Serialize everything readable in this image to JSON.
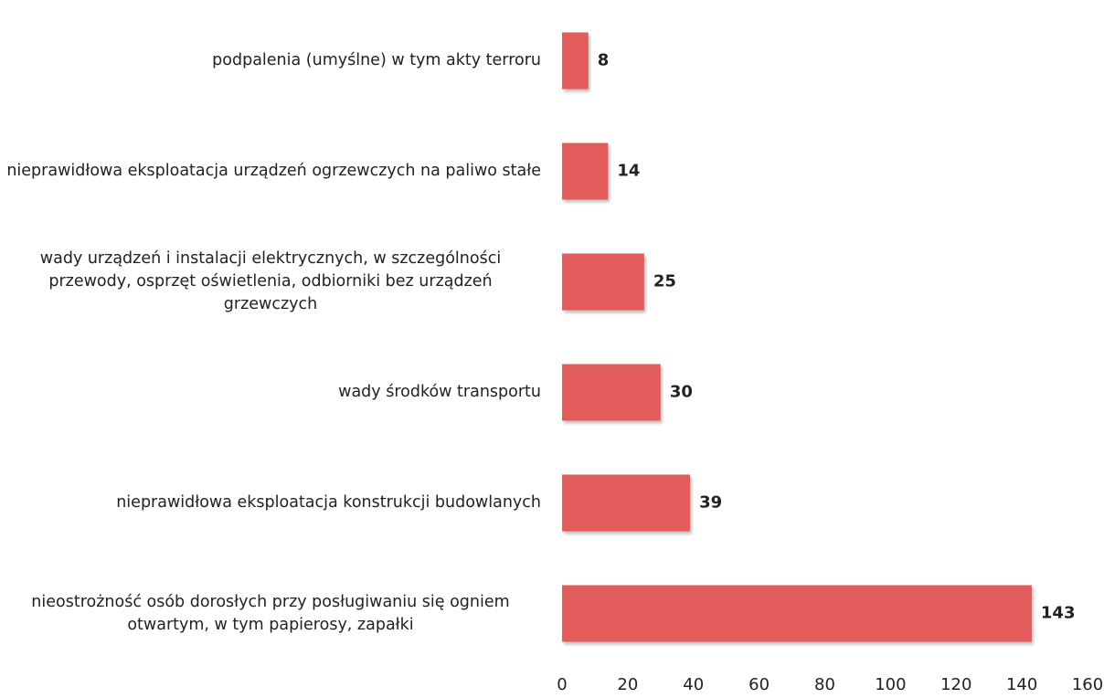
{
  "chart_data": {
    "type": "bar",
    "orientation": "horizontal",
    "categories": [
      "podpalenia (umyślne) w tym akty terroru",
      "nieprawidłowa eksploatacja urządzeń ogrzewczych na paliwo stałe",
      "wady urządzeń i instalacji elektrycznych, w szczególności przewody, osprzęt oświetlenia, odbiorniki bez urządzeń grzewczych",
      "wady środków transportu",
      "nieprawidłowa eksploatacja konstrukcji budowlanych",
      "nieostrożność osób dorosłych przy posługiwaniu się ogniem otwartym, w tym papierosy, zapałki"
    ],
    "values": [
      8,
      14,
      25,
      30,
      39,
      143
    ],
    "color": "#e25b5b",
    "xlim": [
      0,
      160
    ],
    "xticks": [
      0,
      20,
      40,
      60,
      80,
      100,
      120,
      140,
      160
    ],
    "grid": false
  }
}
